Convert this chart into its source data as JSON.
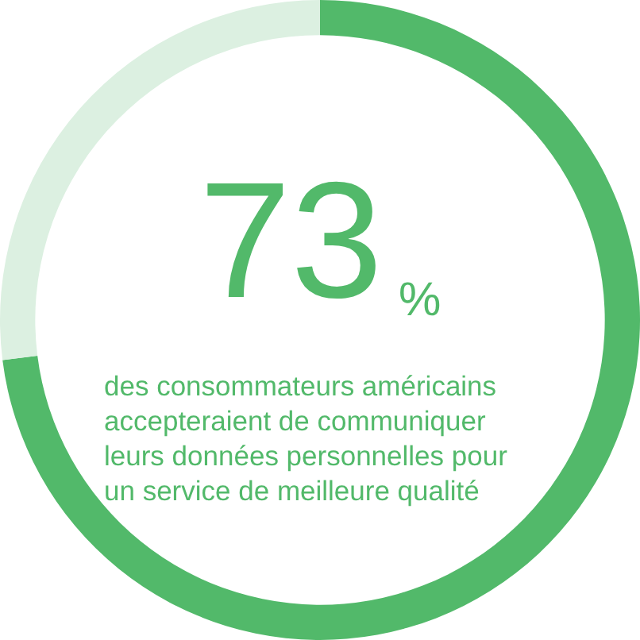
{
  "chart_data": {
    "type": "donut",
    "categories": [
      null,
      null
    ],
    "values": [
      73,
      27
    ],
    "colors": [
      "#52b96a",
      "#dcf0e1"
    ],
    "value_labels": [
      "73%",
      null
    ],
    "annotations": [
      "des consommateurs américains accepteraient de communiquer leurs données personnelles pour un service de meilleure qualité"
    ]
  }
}
